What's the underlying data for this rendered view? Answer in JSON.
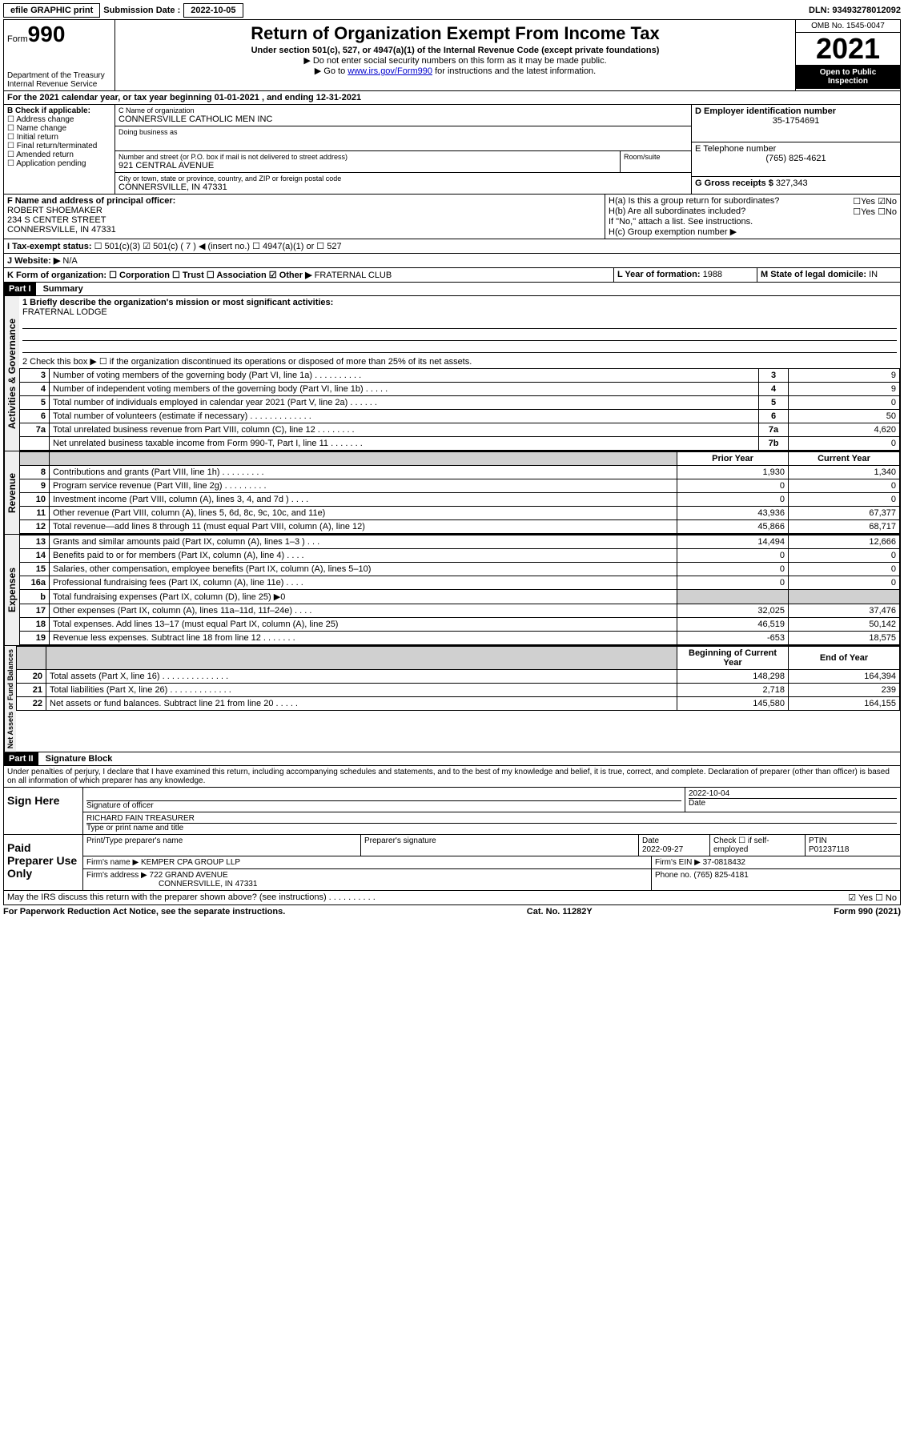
{
  "topbar": {
    "efile": "efile GRAPHIC print",
    "submission_label": "Submission Date :",
    "submission_date": "2022-10-05",
    "dln_label": "DLN:",
    "dln": "93493278012092"
  },
  "header": {
    "form_word": "Form",
    "form_number": "990",
    "dept": "Department of the Treasury",
    "irs": "Internal Revenue Service",
    "title": "Return of Organization Exempt From Income Tax",
    "sub": "Under section 501(c), 527, or 4947(a)(1) of the Internal Revenue Code (except private foundations)",
    "note1": "▶ Do not enter social security numbers on this form as it may be made public.",
    "note2_pre": "▶ Go to ",
    "note2_link": "www.irs.gov/Form990",
    "note2_post": " for instructions and the latest information.",
    "omb": "OMB No. 1545-0047",
    "year": "2021",
    "open1": "Open to Public",
    "open2": "Inspection"
  },
  "period": {
    "text": "For the 2021 calendar year, or tax year beginning ",
    "begin": "01-01-2021",
    "mid": " , and ending ",
    "end": "12-31-2021"
  },
  "sectionB": {
    "label": "B Check if applicable:",
    "opts": [
      "Address change",
      "Name change",
      "Initial return",
      "Final return/terminated",
      "Amended return",
      "Application pending"
    ]
  },
  "sectionC": {
    "name_label": "C Name of organization",
    "name": "CONNERSVILLE CATHOLIC MEN INC",
    "dba_label": "Doing business as",
    "street_label": "Number and street (or P.O. box if mail is not delivered to street address)",
    "room_label": "Room/suite",
    "street": "921 CENTRAL AVENUE",
    "city_label": "City or town, state or province, country, and ZIP or foreign postal code",
    "city": "CONNERSVILLE, IN  47331"
  },
  "sectionD": {
    "label": "D Employer identification number",
    "ein": "35-1754691"
  },
  "sectionE": {
    "label": "E Telephone number",
    "phone": "(765) 825-4621"
  },
  "sectionG": {
    "label": "G Gross receipts $",
    "amount": "327,343"
  },
  "sectionF": {
    "label": "F Name and address of principal officer:",
    "name": "ROBERT SHOEMAKER",
    "street": "234 S CENTER STREET",
    "city": "CONNERSVILLE, IN  47331"
  },
  "sectionH": {
    "ha": "H(a)  Is this a group return for subordinates?",
    "ha_ans": "☐Yes ☑No",
    "hb": "H(b)  Are all subordinates included?",
    "hb_ans": "☐Yes ☐No",
    "hb_note": "If \"No,\" attach a list. See instructions.",
    "hc": "H(c)  Group exemption number ▶"
  },
  "sectionI": {
    "label": "I   Tax-exempt status:",
    "opts": "☐ 501(c)(3)   ☑ 501(c) ( 7 ) ◀ (insert no.)   ☐ 4947(a)(1) or   ☐ 527"
  },
  "sectionJ": {
    "label": "J   Website: ▶",
    "value": "N/A"
  },
  "sectionK": {
    "label": "K Form of organization:  ☐ Corporation  ☐ Trust  ☐ Association  ☑ Other ▶",
    "value": "FRATERNAL CLUB"
  },
  "sectionL": {
    "label": "L Year of formation:",
    "value": "1988"
  },
  "sectionM": {
    "label": "M State of legal domicile:",
    "value": "IN"
  },
  "part1": {
    "header": "Part I",
    "title": "Summary",
    "line1_label": "1  Briefly describe the organization's mission or most significant activities:",
    "mission": "FRATERNAL LODGE",
    "line2": "2   Check this box ▶ ☐  if the organization discontinued its operations or disposed of more than 25% of its net assets.",
    "rows_gov": [
      {
        "n": "3",
        "t": "Number of voting members of the governing body (Part VI, line 1a)  .  .  .  .  .  .  .  .  .  .",
        "box": "3",
        "v": "9"
      },
      {
        "n": "4",
        "t": "Number of independent voting members of the governing body (Part VI, line 1b)  .  .  .  .  .",
        "box": "4",
        "v": "9"
      },
      {
        "n": "5",
        "t": "Total number of individuals employed in calendar year 2021 (Part V, line 2a)  .  .  .  .  .  .",
        "box": "5",
        "v": "0"
      },
      {
        "n": "6",
        "t": "Total number of volunteers (estimate if necessary)  .  .  .  .  .  .  .  .  .  .  .  .  .",
        "box": "6",
        "v": "50"
      },
      {
        "n": "7a",
        "t": "Total unrelated business revenue from Part VIII, column (C), line 12  .  .  .  .  .  .  .  .",
        "box": "7a",
        "v": "4,620"
      },
      {
        "n": "",
        "t": "Net unrelated business taxable income from Form 990-T, Part I, line 11  .  .  .  .  .  .  .",
        "box": "7b",
        "v": "0"
      }
    ],
    "col_prior": "Prior Year",
    "col_current": "Current Year",
    "rows_rev": [
      {
        "n": "8",
        "t": "Contributions and grants (Part VIII, line 1h)  .  .  .  .  .  .  .  .  .",
        "p": "1,930",
        "c": "1,340"
      },
      {
        "n": "9",
        "t": "Program service revenue (Part VIII, line 2g)  .  .  .  .  .  .  .  .  .",
        "p": "0",
        "c": "0"
      },
      {
        "n": "10",
        "t": "Investment income (Part VIII, column (A), lines 3, 4, and 7d )  .  .  .  .",
        "p": "0",
        "c": "0"
      },
      {
        "n": "11",
        "t": "Other revenue (Part VIII, column (A), lines 5, 6d, 8c, 9c, 10c, and 11e)",
        "p": "43,936",
        "c": "67,377"
      },
      {
        "n": "12",
        "t": "Total revenue—add lines 8 through 11 (must equal Part VIII, column (A), line 12)",
        "p": "45,866",
        "c": "68,717"
      }
    ],
    "rows_exp": [
      {
        "n": "13",
        "t": "Grants and similar amounts paid (Part IX, column (A), lines 1–3 )  .  .  .",
        "p": "14,494",
        "c": "12,666"
      },
      {
        "n": "14",
        "t": "Benefits paid to or for members (Part IX, column (A), line 4)  .  .  .  .",
        "p": "0",
        "c": "0"
      },
      {
        "n": "15",
        "t": "Salaries, other compensation, employee benefits (Part IX, column (A), lines 5–10)",
        "p": "0",
        "c": "0"
      },
      {
        "n": "16a",
        "t": "Professional fundraising fees (Part IX, column (A), line 11e)  .  .  .  .",
        "p": "0",
        "c": "0"
      },
      {
        "n": "b",
        "t": "Total fundraising expenses (Part IX, column (D), line 25) ▶0",
        "p": "",
        "c": "",
        "shaded": true
      },
      {
        "n": "17",
        "t": "Other expenses (Part IX, column (A), lines 11a–11d, 11f–24e)  .  .  .  .",
        "p": "32,025",
        "c": "37,476"
      },
      {
        "n": "18",
        "t": "Total expenses. Add lines 13–17 (must equal Part IX, column (A), line 25)",
        "p": "46,519",
        "c": "50,142"
      },
      {
        "n": "19",
        "t": "Revenue less expenses. Subtract line 18 from line 12  .  .  .  .  .  .  .",
        "p": "-653",
        "c": "18,575"
      }
    ],
    "col_begin": "Beginning of Current Year",
    "col_end": "End of Year",
    "rows_net": [
      {
        "n": "20",
        "t": "Total assets (Part X, line 16)  .  .  .  .  .  .  .  .  .  .  .  .  .  .",
        "p": "148,298",
        "c": "164,394"
      },
      {
        "n": "21",
        "t": "Total liabilities (Part X, line 26)  .  .  .  .  .  .  .  .  .  .  .  .  .",
        "p": "2,718",
        "c": "239"
      },
      {
        "n": "22",
        "t": "Net assets or fund balances. Subtract line 21 from line 20  .  .  .  .  .",
        "p": "145,580",
        "c": "164,155"
      }
    ]
  },
  "part2": {
    "header": "Part II",
    "title": "Signature Block",
    "declaration": "Under penalties of perjury, I declare that I have examined this return, including accompanying schedules and statements, and to the best of my knowledge and belief, it is true, correct, and complete. Declaration of preparer (other than officer) is based on all information of which preparer has any knowledge.",
    "sign_here": "Sign Here",
    "sig_officer": "Signature of officer",
    "sig_date": "2022-10-04",
    "date_label": "Date",
    "officer_name": "RICHARD FAIN TREASURER",
    "officer_type": "Type or print name and title",
    "paid": "Paid Preparer Use Only",
    "prep_name_label": "Print/Type preparer's name",
    "prep_sig_label": "Preparer's signature",
    "prep_date": "2022-09-27",
    "check_self": "Check ☐ if self-employed",
    "ptin_label": "PTIN",
    "ptin": "P01237118",
    "firm_name_label": "Firm's name   ▶",
    "firm_name": "KEMPER CPA GROUP LLP",
    "firm_ein_label": "Firm's EIN ▶",
    "firm_ein": "37-0818432",
    "firm_addr_label": "Firm's address ▶",
    "firm_addr1": "722 GRAND AVENUE",
    "firm_addr2": "CONNERSVILLE, IN  47331",
    "phone_label": "Phone no.",
    "phone": "(765) 825-4181",
    "may_irs": "May the IRS discuss this return with the preparer shown above? (see instructions)  .  .  .  .  .  .  .  .  .  .",
    "may_ans": "☑ Yes  ☐ No"
  },
  "footer": {
    "left": "For Paperwork Reduction Act Notice, see the separate instructions.",
    "mid": "Cat. No. 11282Y",
    "right": "Form 990 (2021)"
  },
  "vlabels": {
    "gov": "Activities & Governance",
    "rev": "Revenue",
    "exp": "Expenses",
    "net": "Net Assets or Fund Balances"
  }
}
